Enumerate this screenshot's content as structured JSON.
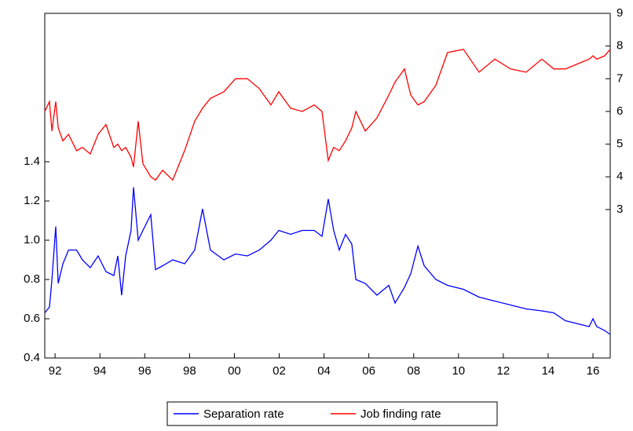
{
  "chart_data": {
    "type": "line",
    "x": [
      1991.54,
      1991.75,
      1991.86,
      1992.03,
      1992.14,
      1992.35,
      1992.6,
      1992.96,
      1993.22,
      1993.57,
      1993.92,
      1994.27,
      1994.62,
      1994.8,
      1994.97,
      1995.15,
      1995.39,
      1995.5,
      1995.71,
      1995.92,
      1996.27,
      1996.48,
      1996.8,
      1997.25,
      1997.78,
      1998.23,
      1998.58,
      1998.93,
      1999.53,
      2000.05,
      2000.58,
      2001.11,
      2001.63,
      2001.98,
      2002.51,
      2003.03,
      2003.56,
      2003.91,
      2004.19,
      2004.43,
      2004.68,
      2004.96,
      2005.24,
      2005.42,
      2005.84,
      2006.36,
      2006.89,
      2007.17,
      2007.59,
      2007.87,
      2008.19,
      2008.47,
      2008.99,
      2009.51,
      2010.22,
      2010.92,
      2011.62,
      2012.32,
      2013.02,
      2013.72,
      2014.25,
      2014.77,
      2015.47,
      2015.83,
      2016.0,
      2016.17,
      2016.52,
      2016.77
    ],
    "series": [
      {
        "name": "Separation rate",
        "color": "#0000ff",
        "axis": "y",
        "values": [
          0.63,
          0.66,
          0.8,
          1.07,
          0.78,
          0.88,
          0.95,
          0.95,
          0.9,
          0.86,
          0.92,
          0.84,
          0.82,
          0.92,
          0.72,
          0.92,
          1.05,
          1.27,
          1.0,
          1.05,
          1.13,
          0.85,
          0.87,
          0.9,
          0.88,
          0.95,
          1.16,
          0.95,
          0.9,
          0.93,
          0.92,
          0.95,
          1.0,
          1.05,
          1.03,
          1.05,
          1.05,
          1.02,
          1.21,
          1.05,
          0.95,
          1.03,
          0.98,
          0.8,
          0.78,
          0.72,
          0.77,
          0.68,
          0.76,
          0.83,
          0.97,
          0.87,
          0.8,
          0.77,
          0.75,
          0.71,
          0.69,
          0.67,
          0.65,
          0.64,
          0.63,
          0.59,
          0.57,
          0.56,
          0.6,
          0.56,
          0.54,
          0.52
        ]
      },
      {
        "name": "Job finding rate",
        "color": "#ff0000",
        "axis": "y2",
        "values": [
          6.0,
          6.3,
          5.4,
          6.3,
          5.5,
          5.1,
          5.3,
          4.8,
          4.9,
          4.7,
          5.3,
          5.6,
          4.9,
          5.0,
          4.8,
          4.9,
          4.6,
          4.3,
          5.7,
          4.4,
          4.0,
          3.9,
          4.2,
          3.9,
          4.8,
          5.7,
          6.1,
          6.4,
          6.6,
          7.0,
          7.0,
          6.7,
          6.2,
          6.6,
          6.1,
          6.0,
          6.2,
          6.0,
          4.5,
          4.9,
          4.8,
          5.1,
          5.5,
          6.0,
          5.4,
          5.8,
          6.5,
          6.9,
          7.3,
          6.5,
          6.2,
          6.3,
          6.8,
          7.8,
          7.9,
          7.2,
          7.6,
          7.3,
          7.2,
          7.6,
          7.3,
          7.3,
          7.5,
          7.6,
          7.7,
          7.6,
          7.7,
          7.9
        ]
      }
    ],
    "xlim": [
      1991.54,
      2016.77
    ],
    "xticks": [
      {
        "value": 1992,
        "label": "92"
      },
      {
        "value": 1994,
        "label": "94"
      },
      {
        "value": 1996,
        "label": "96"
      },
      {
        "value": 1998,
        "label": "98"
      },
      {
        "value": 2000,
        "label": "00"
      },
      {
        "value": 2002,
        "label": "02"
      },
      {
        "value": 2004,
        "label": "04"
      },
      {
        "value": 2006,
        "label": "06"
      },
      {
        "value": 2008,
        "label": "08"
      },
      {
        "value": 2010,
        "label": "10"
      },
      {
        "value": 2012,
        "label": "12"
      },
      {
        "value": 2014,
        "label": "14"
      },
      {
        "value": 2016,
        "label": "16"
      }
    ],
    "ylim": [
      0.4,
      2.156
    ],
    "yticks": [
      0.4,
      0.6,
      0.8,
      {
        "value": 1.0,
        "label": "1.0"
      },
      1.2,
      1.4
    ],
    "y2lim": [
      -1.54,
      9
    ],
    "y2ticks": [
      3,
      4,
      5,
      6,
      7,
      8,
      9
    ],
    "legend": "bottom"
  }
}
